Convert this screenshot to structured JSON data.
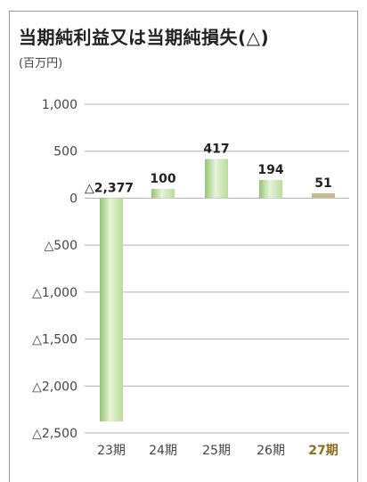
{
  "title": "当期純利益又は当期純損失(△)",
  "unit": "(百万円)",
  "chart_data": {
    "type": "bar",
    "categories": [
      "23期",
      "24期",
      "25期",
      "26期",
      "27期"
    ],
    "values": [
      -2377,
      100,
      417,
      194,
      51
    ],
    "value_labels": [
      "△2,377",
      "100",
      "417",
      "194",
      "51"
    ],
    "highlight_category": "27期",
    "ylim": [
      -2500,
      1000
    ],
    "yticks": [
      1000,
      500,
      0,
      -500,
      -1000,
      -1500,
      -2000,
      -2500
    ],
    "ytick_labels": [
      "1,000",
      "500",
      "0",
      "△500",
      "△1,000",
      "△1,500",
      "△2,000",
      "△2,500"
    ],
    "grid": true,
    "colors": {
      "bar": "#b9dc9a",
      "bar_light": "#e6f3d8",
      "bar_dark": "#95c472",
      "highlight_bar": "#c7b98a",
      "highlight_text": "#8a6d1f",
      "grid": "#b0b0b0"
    }
  }
}
